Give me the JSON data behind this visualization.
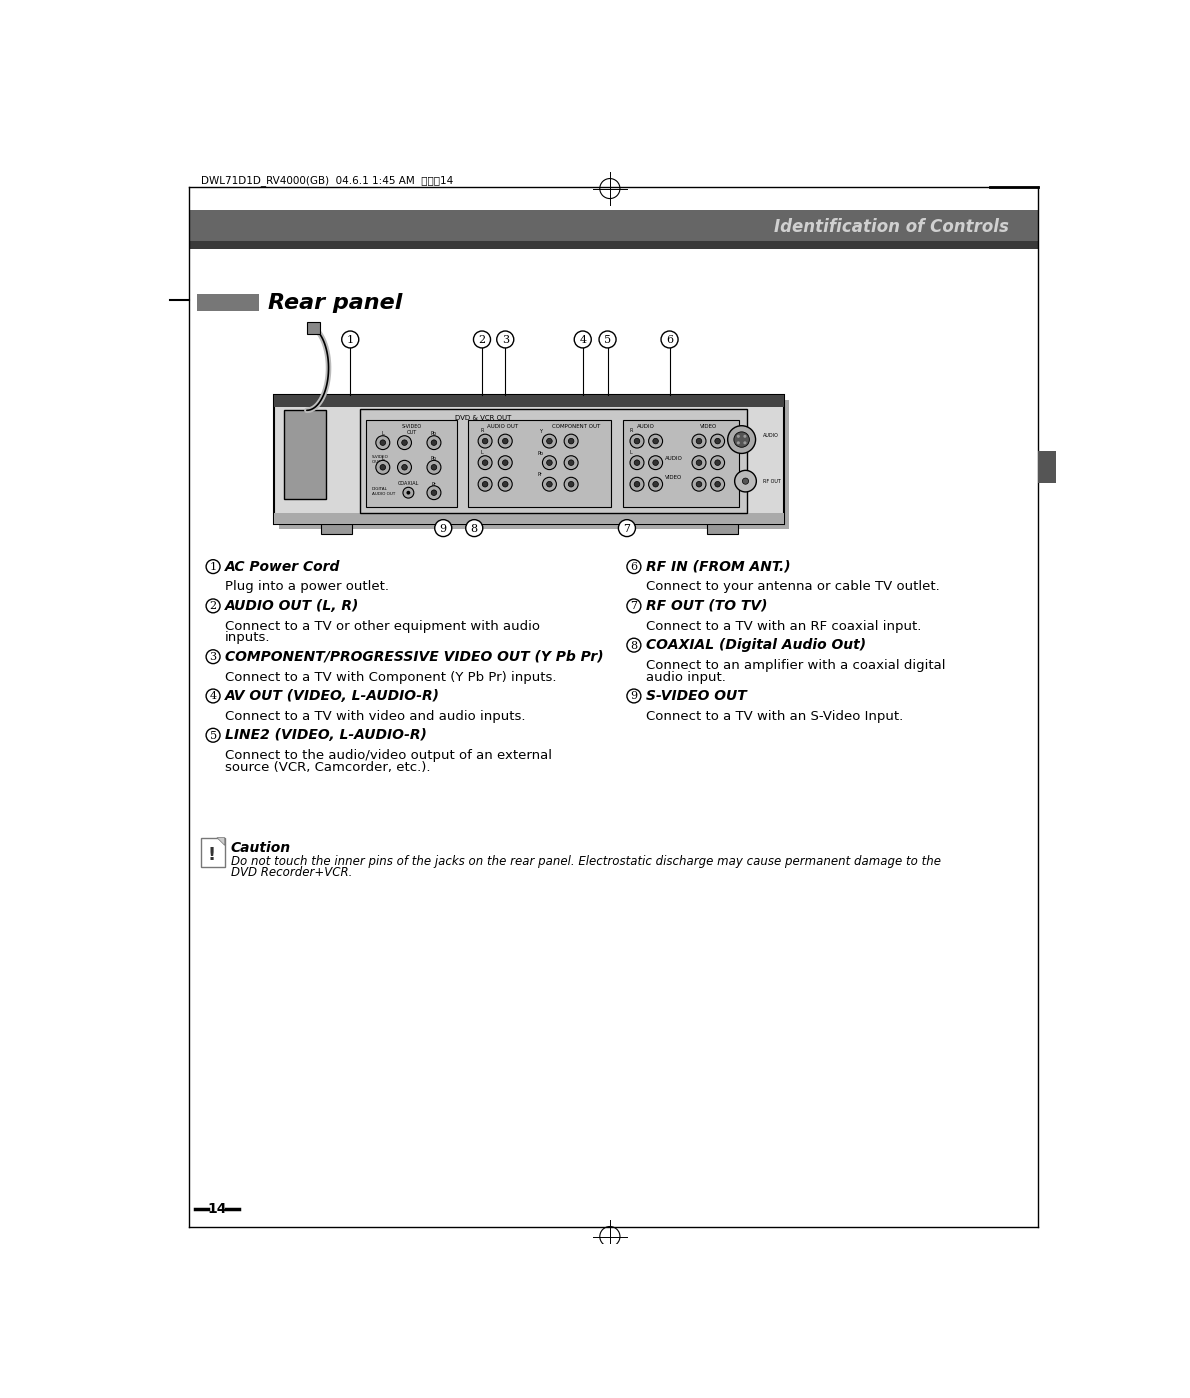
{
  "page_bg": "#ffffff",
  "header_bar_color": "#666666",
  "header_bar_dark": "#3a3a3a",
  "header_text": "Identification of Controls",
  "header_text_color": "#d0d0d0",
  "top_bar_text": "DWL71D1D_RV4000(GB)  04.6.1 1:45 AM  ページ14",
  "section_title": "Rear panel",
  "section_bar_color": "#777777",
  "page_number": "14",
  "items_left": [
    {
      "num": "1",
      "title": "AC Power Cord",
      "desc": "Plug into a power outlet."
    },
    {
      "num": "2",
      "title": "AUDIO OUT (L, R)",
      "desc": "Connect to a TV or other equipment with audio\ninputs."
    },
    {
      "num": "3",
      "title": "COMPONENT/PROGRESSIVE VIDEO OUT (Y Pb Pr)",
      "desc": "Connect to a TV with Component (Y Pb Pr) inputs."
    },
    {
      "num": "4",
      "title": "AV OUT (VIDEO, L-AUDIO-R)",
      "desc": "Connect to a TV with video and audio inputs."
    },
    {
      "num": "5",
      "title": "LINE2 (VIDEO, L-AUDIO-R)",
      "desc": "Connect to the audio/video output of an external\nsource (VCR, Camcorder, etc.)."
    }
  ],
  "items_right": [
    {
      "num": "6",
      "title": "RF IN (FROM ANT.)",
      "desc": "Connect to your antenna or cable TV outlet."
    },
    {
      "num": "7",
      "title": "RF OUT (TO TV)",
      "desc": "Connect to a TV with an RF coaxial input."
    },
    {
      "num": "8",
      "title": "COAXIAL (Digital Audio Out)",
      "desc": "Connect to an amplifier with a coaxial digital\naudio input."
    },
    {
      "num": "9",
      "title": "S-VIDEO OUT",
      "desc": "Connect to a TV with an S-Video Input."
    }
  ],
  "caution_title": "Caution",
  "caution_text": "Do not touch the inner pins of the jacks on the rear panel. Electrostatic discharge may cause permanent damage to the\nDVD Recorder+VCR."
}
